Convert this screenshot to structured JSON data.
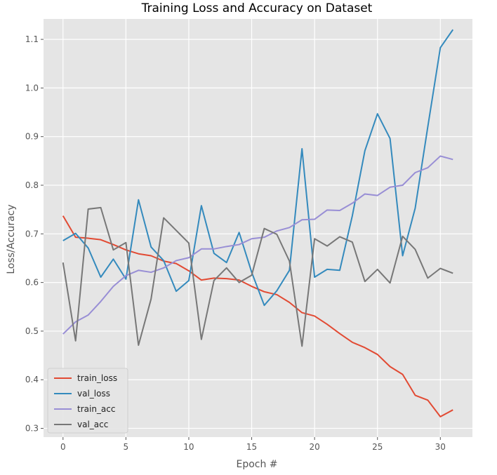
{
  "chart_data": {
    "type": "line",
    "title": "Training Loss and Accuracy on Dataset",
    "xlabel": "Epoch #",
    "ylabel": "Loss/Accuracy",
    "xlim": [
      -1.55,
      32.55
    ],
    "ylim": [
      0.282,
      1.142
    ],
    "xticks": [
      0,
      5,
      10,
      15,
      20,
      25,
      30
    ],
    "yticks": [
      0.3,
      0.4,
      0.5,
      0.6,
      0.7,
      0.8,
      0.9,
      1.0,
      1.1
    ],
    "grid": true,
    "legend_position": "lower-left",
    "background": "#e5e5e5",
    "x": [
      0,
      1,
      2,
      3,
      4,
      5,
      6,
      7,
      8,
      9,
      10,
      11,
      12,
      13,
      14,
      15,
      16,
      17,
      18,
      19,
      20,
      21,
      22,
      23,
      24,
      25,
      26,
      27,
      28,
      29,
      30,
      31
    ],
    "series": [
      {
        "name": "train_loss",
        "color": "#e24a33",
        "values": [
          0.737,
          0.693,
          0.691,
          0.688,
          0.678,
          0.667,
          0.659,
          0.655,
          0.644,
          0.639,
          0.624,
          0.605,
          0.609,
          0.608,
          0.605,
          0.592,
          0.581,
          0.575,
          0.559,
          0.538,
          0.531,
          0.514,
          0.495,
          0.477,
          0.466,
          0.452,
          0.427,
          0.411,
          0.368,
          0.358,
          0.324,
          0.338
        ]
      },
      {
        "name": "val_loss",
        "color": "#348abd",
        "values": [
          0.686,
          0.701,
          0.671,
          0.611,
          0.648,
          0.607,
          0.77,
          0.673,
          0.645,
          0.582,
          0.604,
          0.758,
          0.66,
          0.641,
          0.703,
          0.621,
          0.553,
          0.583,
          0.625,
          0.875,
          0.611,
          0.627,
          0.625,
          0.737,
          0.871,
          0.947,
          0.896,
          0.655,
          0.753,
          0.92,
          1.083,
          1.12
        ]
      },
      {
        "name": "train_acc",
        "color": "#988ed5",
        "values": [
          0.494,
          0.519,
          0.533,
          0.561,
          0.592,
          0.614,
          0.625,
          0.621,
          0.63,
          0.645,
          0.651,
          0.669,
          0.669,
          0.674,
          0.678,
          0.69,
          0.693,
          0.706,
          0.713,
          0.729,
          0.73,
          0.749,
          0.748,
          0.763,
          0.782,
          0.779,
          0.796,
          0.8,
          0.826,
          0.836,
          0.86,
          0.853
        ]
      },
      {
        "name": "val_acc",
        "color": "#777777",
        "values": [
          0.641,
          0.48,
          0.751,
          0.754,
          0.667,
          0.682,
          0.471,
          0.566,
          0.733,
          0.707,
          0.681,
          0.483,
          0.604,
          0.63,
          0.6,
          0.615,
          0.711,
          0.699,
          0.644,
          0.469,
          0.69,
          0.675,
          0.694,
          0.683,
          0.602,
          0.627,
          0.599,
          0.695,
          0.668,
          0.609,
          0.629,
          0.619
        ]
      }
    ]
  }
}
